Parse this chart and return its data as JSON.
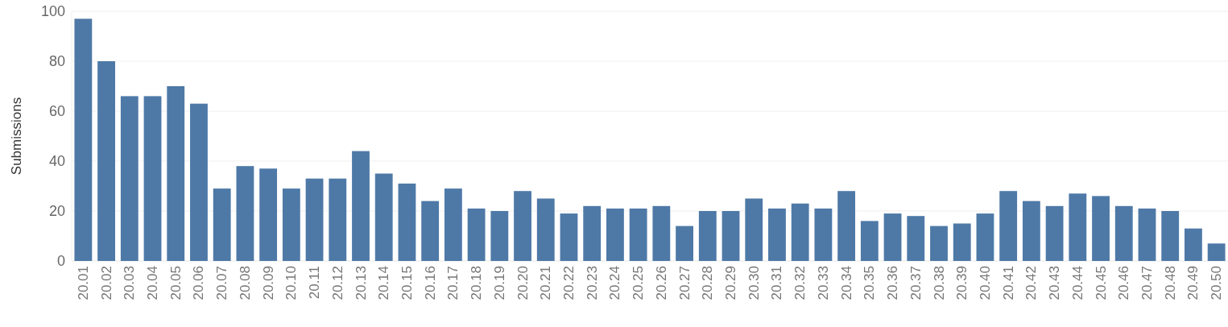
{
  "chart_data": {
    "type": "bar",
    "ylabel": "Submissions",
    "categories": [
      "20.01",
      "20.02",
      "20.03",
      "20.04",
      "20.05",
      "20.06",
      "20.07",
      "20.08",
      "20.09",
      "20.10",
      "20.11",
      "20.12",
      "20.13",
      "20.14",
      "20.15",
      "20.16",
      "20.17",
      "20.18",
      "20.19",
      "20.20",
      "20.21",
      "20.22",
      "20.23",
      "20.24",
      "20.25",
      "20.26",
      "20.27",
      "20.28",
      "20.29",
      "20.30",
      "20.31",
      "20.32",
      "20.33",
      "20.34",
      "20.35",
      "20.36",
      "20.37",
      "20.38",
      "20.39",
      "20.40",
      "20.41",
      "20.42",
      "20.43",
      "20.44",
      "20.45",
      "20.46",
      "20.47",
      "20.48",
      "20.49",
      "20.50"
    ],
    "values": [
      97,
      80,
      66,
      66,
      70,
      63,
      29,
      38,
      37,
      29,
      33,
      33,
      44,
      35,
      31,
      24,
      29,
      21,
      20,
      28,
      25,
      19,
      22,
      21,
      21,
      22,
      14,
      20,
      20,
      25,
      21,
      23,
      21,
      28,
      16,
      19,
      18,
      14,
      15,
      19,
      28,
      24,
      22,
      27,
      26,
      22,
      21,
      20,
      13,
      7
    ],
    "color": "#4e79a7",
    "ylim": [
      0,
      100
    ],
    "yticks": [
      0,
      20,
      40,
      60,
      80,
      100
    ],
    "grid": "y"
  }
}
